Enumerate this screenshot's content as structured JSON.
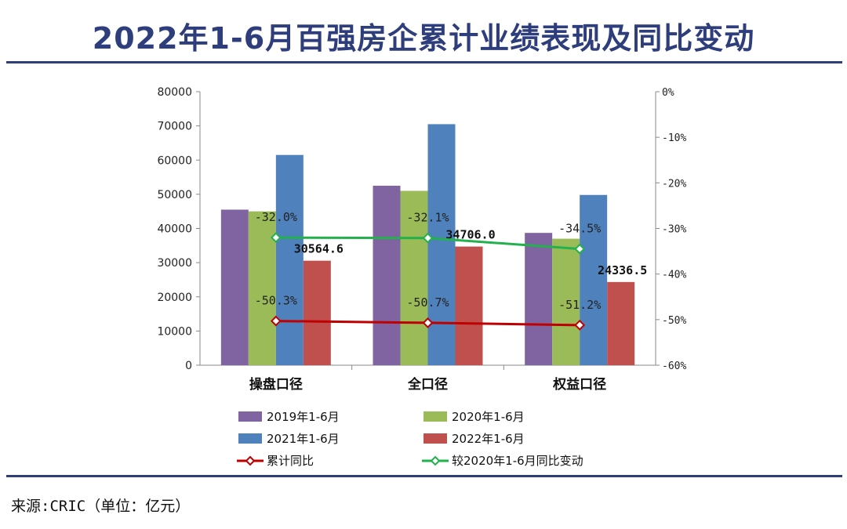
{
  "title": "2022年1-6月百强房企累计业绩表现及同比变动",
  "source": "来源:CRIC（单位：亿元）",
  "chart_data": {
    "type": "bar",
    "categories": [
      "操盘口径",
      "全口径",
      "权益口径"
    ],
    "series": [
      {
        "name": "2019年1-6月",
        "color": "#8064a2",
        "values": [
          45500,
          52500,
          38700
        ]
      },
      {
        "name": "2020年1-6月",
        "color": "#9bbb59",
        "values": [
          45000,
          51000,
          37000
        ]
      },
      {
        "name": "2021年1-6月",
        "color": "#4f81bd",
        "values": [
          61500,
          70500,
          49800
        ]
      },
      {
        "name": "2022年1-6月",
        "color": "#c0504d",
        "values": [
          30564.6,
          34706.0,
          24336.5
        ],
        "value_labels": [
          "30564.6",
          "34706.0",
          "24336.5"
        ]
      }
    ],
    "line_series": [
      {
        "name": "累计同比",
        "color": "#c00000",
        "values": [
          -50.3,
          -50.7,
          -51.2
        ],
        "labels": [
          "-50.3%",
          "-50.7%",
          "-51.2%"
        ]
      },
      {
        "name": "较2020年1-6月同比变动",
        "color": "#22b14c",
        "values": [
          -32.0,
          -32.1,
          -34.5
        ],
        "labels": [
          "-32.0%",
          "-32.1%",
          "-34.5%"
        ]
      }
    ],
    "ylim": [
      0,
      80000
    ],
    "yticks": [
      "0",
      "10000",
      "20000",
      "30000",
      "40000",
      "50000",
      "60000",
      "70000",
      "80000"
    ],
    "y2lim": [
      -60,
      0
    ],
    "y2ticks": [
      "0%",
      "-10%",
      "-20%",
      "-30%",
      "-40%",
      "-50%",
      "-60%"
    ],
    "legend_position": "bottom"
  }
}
